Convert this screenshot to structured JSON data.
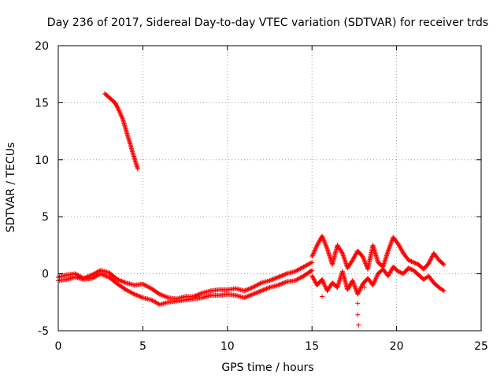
{
  "chart_data": {
    "type": "scatter",
    "title": "Day 236 of 2017, Sidereal Day-to-day VTEC variation (SDTVAR) for receiver trds",
    "xlabel": "GPS time / hours",
    "ylabel": "SDTVAR / TECUs",
    "xlim": [
      0,
      25
    ],
    "ylim": [
      -5,
      20
    ],
    "xticks": [
      0,
      5,
      10,
      15,
      20,
      25
    ],
    "yticks": [
      -5,
      0,
      5,
      10,
      15,
      20
    ],
    "grid": true,
    "marker": "+",
    "series_color": "#ff0000",
    "series": [
      {
        "name": "SDTVAR",
        "segments": [
          {
            "x": [
              0.0,
              0.5,
              1.0,
              1.5,
              2.0,
              2.5,
              3.0,
              3.5,
              4.0,
              4.5,
              5.0,
              5.5,
              6.0,
              6.5,
              7.0,
              7.5,
              8.0,
              8.5,
              9.0,
              9.5,
              10.0,
              10.5,
              11.0,
              11.5,
              12.0,
              12.5,
              13.0,
              13.5,
              14.0,
              14.5,
              15.0
            ],
            "y": [
              -0.3,
              -0.1,
              0.0,
              -0.4,
              -0.1,
              0.3,
              0.1,
              -0.5,
              -0.8,
              -1.0,
              -0.9,
              -1.3,
              -1.8,
              -2.1,
              -2.2,
              -2.0,
              -2.0,
              -1.7,
              -1.5,
              -1.4,
              -1.4,
              -1.3,
              -1.5,
              -1.2,
              -0.8,
              -0.6,
              -0.3,
              0.0,
              0.2,
              0.6,
              1.0
            ]
          },
          {
            "x": [
              0.0,
              0.5,
              1.0,
              1.5,
              2.0,
              2.5,
              3.0,
              3.5,
              4.0,
              4.5,
              5.0,
              5.5,
              6.0,
              6.5,
              7.0,
              7.5,
              8.0,
              8.5,
              9.0,
              9.5,
              10.0,
              10.5,
              11.0,
              11.5,
              12.0,
              12.5,
              13.0,
              13.5,
              14.0,
              14.5,
              15.0
            ],
            "y": [
              -0.6,
              -0.5,
              -0.3,
              -0.5,
              -0.4,
              0.0,
              -0.3,
              -0.9,
              -1.4,
              -1.8,
              -2.1,
              -2.3,
              -2.7,
              -2.5,
              -2.4,
              -2.3,
              -2.2,
              -2.1,
              -1.9,
              -1.9,
              -1.8,
              -1.9,
              -2.1,
              -1.8,
              -1.5,
              -1.2,
              -1.0,
              -0.7,
              -0.6,
              -0.2,
              0.3
            ]
          },
          {
            "x": [
              2.75,
              2.9,
              3.05,
              3.2,
              3.35,
              3.5,
              3.65,
              3.8,
              3.95,
              4.1,
              4.25,
              4.4,
              4.55,
              4.7
            ],
            "y": [
              15.8,
              15.6,
              15.4,
              15.2,
              15.0,
              14.6,
              14.1,
              13.6,
              12.9,
              12.1,
              11.4,
              10.6,
              9.9,
              9.2
            ]
          },
          {
            "x": [
              15.0,
              15.3,
              15.6,
              15.9,
              16.2,
              16.5,
              16.8,
              17.1,
              17.4,
              17.7,
              18.0,
              18.3,
              18.6,
              18.9,
              19.2,
              19.5,
              19.8,
              20.1,
              20.4,
              20.7,
              21.0,
              21.3,
              21.6,
              21.9,
              22.2,
              22.5,
              22.8
            ],
            "y": [
              1.5,
              2.5,
              3.3,
              2.2,
              0.8,
              2.5,
              1.8,
              0.5,
              1.2,
              2.0,
              1.5,
              0.4,
              2.5,
              1.0,
              0.6,
              2.0,
              3.2,
              2.6,
              1.8,
              1.2,
              1.0,
              0.8,
              0.4,
              0.9,
              1.8,
              1.2,
              0.8
            ]
          },
          {
            "x": [
              15.0,
              15.3,
              15.6,
              15.9,
              16.2,
              16.5,
              16.8,
              17.1,
              17.4,
              17.7,
              18.0,
              18.3,
              18.6,
              18.9,
              19.2,
              19.5,
              19.8,
              20.1,
              20.4,
              20.7,
              21.0,
              21.3,
              21.6,
              21.9,
              22.2,
              22.5,
              22.8
            ],
            "y": [
              -0.2,
              -1.0,
              -0.5,
              -1.5,
              -0.8,
              -1.2,
              0.2,
              -1.4,
              -0.6,
              -1.8,
              -0.9,
              -0.4,
              -1.0,
              0.0,
              0.4,
              -0.2,
              0.6,
              0.2,
              0.0,
              0.5,
              0.3,
              -0.1,
              -0.5,
              -0.2,
              -0.8,
              -1.2,
              -1.5
            ]
          },
          {
            "x": [
              15.6,
              15.6,
              17.7,
              17.7,
              17.75,
              18.1
            ],
            "y": [
              -0.8,
              -2.0,
              -2.6,
              -3.6,
              -4.5,
              -1.2
            ]
          }
        ]
      }
    ]
  }
}
